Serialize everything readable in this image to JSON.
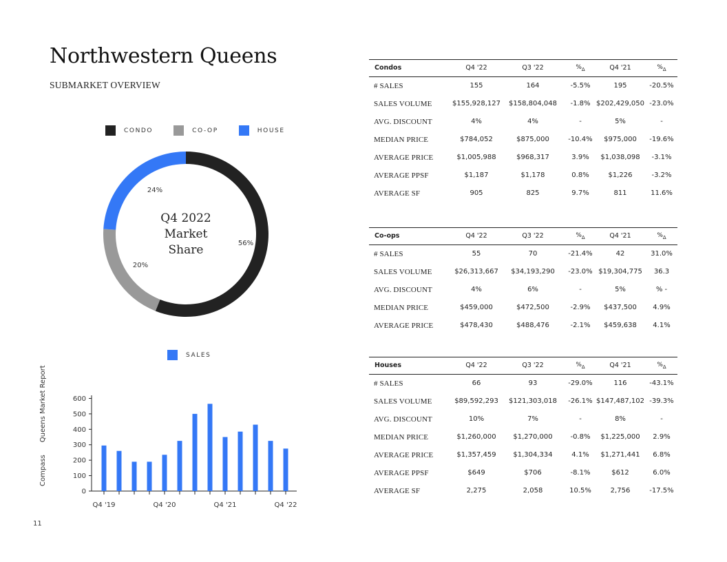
{
  "title": "Northwestern Queens",
  "subtitle": "SUBMARKET OVERVIEW",
  "donut": {
    "legend": [
      {
        "label": "CONDO",
        "color": "#222222"
      },
      {
        "label": "CO-OP",
        "color": "#999999"
      },
      {
        "label": "HOUSE",
        "color": "#3478f6"
      }
    ],
    "center_text": [
      "Q4 2022",
      "Market",
      "Share"
    ],
    "slices": [
      {
        "name": "CONDO",
        "value": 56,
        "label": "56%",
        "color": "#222222"
      },
      {
        "name": "CO-OP",
        "value": 20,
        "label": "20%",
        "color": "#999999"
      },
      {
        "name": "HOUSE",
        "value": 24,
        "label": "24%",
        "color": "#3478f6"
      }
    ]
  },
  "chart_data": {
    "type": "bar",
    "legend": "SALES",
    "color": "#3478f6",
    "categories": [
      "Q4 '19",
      "",
      "",
      "",
      "Q4 '20",
      "",
      "",
      "",
      "Q4 '21",
      "",
      "",
      "",
      "Q4 '22"
    ],
    "values": [
      295,
      260,
      190,
      190,
      235,
      325,
      500,
      565,
      350,
      385,
      430,
      325,
      275
    ],
    "yticks": [
      0,
      100,
      200,
      300,
      400,
      500,
      600
    ],
    "ylim": [
      0,
      620
    ]
  },
  "side_label": {
    "brand": "Compass",
    "report": "Queens Market Report"
  },
  "page_number": "11",
  "tables": [
    {
      "name": "Condos",
      "columns": [
        "Q4 '22",
        "Q3 '22",
        "%",
        "Q4 '21",
        "%"
      ],
      "rows": [
        {
          "label": "# SALES",
          "values": [
            "155",
            "164",
            "-5.5%",
            "195",
            "-20.5%"
          ]
        },
        {
          "label": "SALES VOLUME",
          "values": [
            "$155,928,127",
            "$158,804,048",
            "-1.8%",
            "$202,429,050",
            "-23.0%"
          ]
        },
        {
          "label": "AVG. DISCOUNT",
          "values": [
            "4%",
            "4%",
            "-",
            "5%",
            "-"
          ]
        },
        {
          "label": "MEDIAN PRICE",
          "values": [
            "$784,052",
            "$875,000",
            "-10.4%",
            "$975,000",
            "-19.6%"
          ]
        },
        {
          "label": "AVERAGE PRICE",
          "values": [
            "$1,005,988",
            "$968,317",
            "3.9%",
            "$1,038,098",
            "-3.1%"
          ]
        },
        {
          "label": "AVERAGE PPSF",
          "values": [
            "$1,187",
            "$1,178",
            "0.8%",
            "$1,226",
            "-3.2%"
          ]
        },
        {
          "label": "AVERAGE SF",
          "values": [
            "905",
            "825",
            "9.7%",
            "811",
            "11.6%"
          ]
        }
      ]
    },
    {
      "name": "Co-ops",
      "columns": [
        "Q4 '22",
        "Q3 '22",
        "%",
        "Q4 '21",
        "%"
      ],
      "rows": [
        {
          "label": "# SALES",
          "values": [
            "55",
            "70",
            "-21.4%",
            "42",
            "31.0%"
          ]
        },
        {
          "label": "SALES VOLUME",
          "values": [
            "$26,313,667",
            "$34,193,290",
            "-23.0%",
            "$19,304,775",
            "36.3"
          ]
        },
        {
          "label": "AVG. DISCOUNT",
          "values": [
            "4%",
            "6%",
            "-",
            "5%",
            "% -"
          ]
        },
        {
          "label": "MEDIAN PRICE",
          "values": [
            "$459,000",
            "$472,500",
            "-2.9%",
            "$437,500",
            "4.9%"
          ]
        },
        {
          "label": "AVERAGE PRICE",
          "values": [
            "$478,430",
            "$488,476",
            "-2.1%",
            "$459,638",
            "4.1%"
          ]
        }
      ]
    },
    {
      "name": "Houses",
      "columns": [
        "Q4 '22",
        "Q3 '22",
        "%",
        "Q4 '21",
        "%"
      ],
      "rows": [
        {
          "label": "# SALES",
          "values": [
            "66",
            "93",
            "-29.0%",
            "116",
            "-43.1%"
          ]
        },
        {
          "label": "SALES VOLUME",
          "values": [
            "$89,592,293",
            "$121,303,018",
            "-26.1%",
            "$147,487,102",
            "-39.3%"
          ]
        },
        {
          "label": "AVG. DISCOUNT",
          "values": [
            "10%",
            "7%",
            "-",
            "8%",
            "-"
          ]
        },
        {
          "label": "MEDIAN PRICE",
          "values": [
            "$1,260,000",
            "$1,270,000",
            "-0.8%",
            "$1,225,000",
            "2.9%"
          ]
        },
        {
          "label": "AVERAGE PRICE",
          "values": [
            "$1,357,459",
            "$1,304,334",
            "4.1%",
            "$1,271,441",
            "6.8%"
          ]
        },
        {
          "label": "AVERAGE PPSF",
          "values": [
            "$649",
            "$706",
            "-8.1%",
            "$612",
            "6.0%"
          ]
        },
        {
          "label": "AVERAGE SF",
          "values": [
            "2,275",
            "2,058",
            "10.5%",
            "2,756",
            "-17.5%"
          ]
        }
      ]
    }
  ]
}
